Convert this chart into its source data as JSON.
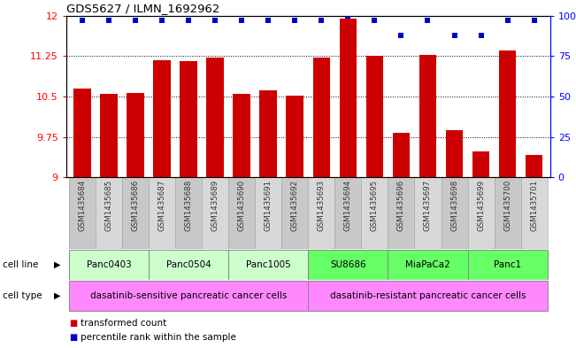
{
  "title": "GDS5627 / ILMN_1692962",
  "samples": [
    "GSM1435684",
    "GSM1435685",
    "GSM1435686",
    "GSM1435687",
    "GSM1435688",
    "GSM1435689",
    "GSM1435690",
    "GSM1435691",
    "GSM1435692",
    "GSM1435693",
    "GSM1435694",
    "GSM1435695",
    "GSM1435696",
    "GSM1435697",
    "GSM1435698",
    "GSM1435699",
    "GSM1435700",
    "GSM1435701"
  ],
  "transformed_counts": [
    10.65,
    10.55,
    10.57,
    11.18,
    11.15,
    11.22,
    10.55,
    10.62,
    10.52,
    11.22,
    11.95,
    11.25,
    9.82,
    11.28,
    9.88,
    9.48,
    11.35,
    9.42
  ],
  "percentile_ranks": [
    97,
    97,
    97,
    97,
    97,
    97,
    97,
    97,
    97,
    97,
    100,
    97,
    88,
    97,
    88,
    88,
    97,
    97
  ],
  "ymin": 9,
  "ymax": 12,
  "yticks": [
    9,
    9.75,
    10.5,
    11.25,
    12
  ],
  "ytick_labels": [
    "9",
    "9.75",
    "10.5",
    "11.25",
    "12"
  ],
  "pct_min": 0,
  "pct_max": 100,
  "right_yticks": [
    0,
    25,
    50,
    75,
    100
  ],
  "right_ytick_labels": [
    "0",
    "25",
    "50",
    "75",
    "100%"
  ],
  "dotted_lines": [
    9.75,
    10.5,
    11.25
  ],
  "bar_color": "#cc0000",
  "dot_color": "#0000cc",
  "cell_lines": [
    {
      "name": "Panc0403",
      "start": 0,
      "end": 3,
      "color": "#ccffcc"
    },
    {
      "name": "Panc0504",
      "start": 3,
      "end": 6,
      "color": "#ccffcc"
    },
    {
      "name": "Panc1005",
      "start": 6,
      "end": 9,
      "color": "#ccffcc"
    },
    {
      "name": "SU8686",
      "start": 9,
      "end": 12,
      "color": "#66ff66"
    },
    {
      "name": "MiaPaCa2",
      "start": 12,
      "end": 15,
      "color": "#66ff66"
    },
    {
      "name": "Panc1",
      "start": 15,
      "end": 18,
      "color": "#66ff66"
    }
  ],
  "cell_types": [
    {
      "name": "dasatinib-sensitive pancreatic cancer cells",
      "start": 0,
      "end": 9,
      "color": "#ff88ff"
    },
    {
      "name": "dasatinib-resistant pancreatic cancer cells",
      "start": 9,
      "end": 18,
      "color": "#ff88ff"
    }
  ],
  "sample_bg_color": "#cccccc",
  "legend_items": [
    {
      "label": "transformed count",
      "color": "#cc0000"
    },
    {
      "label": "percentile rank within the sample",
      "color": "#0000cc"
    }
  ]
}
